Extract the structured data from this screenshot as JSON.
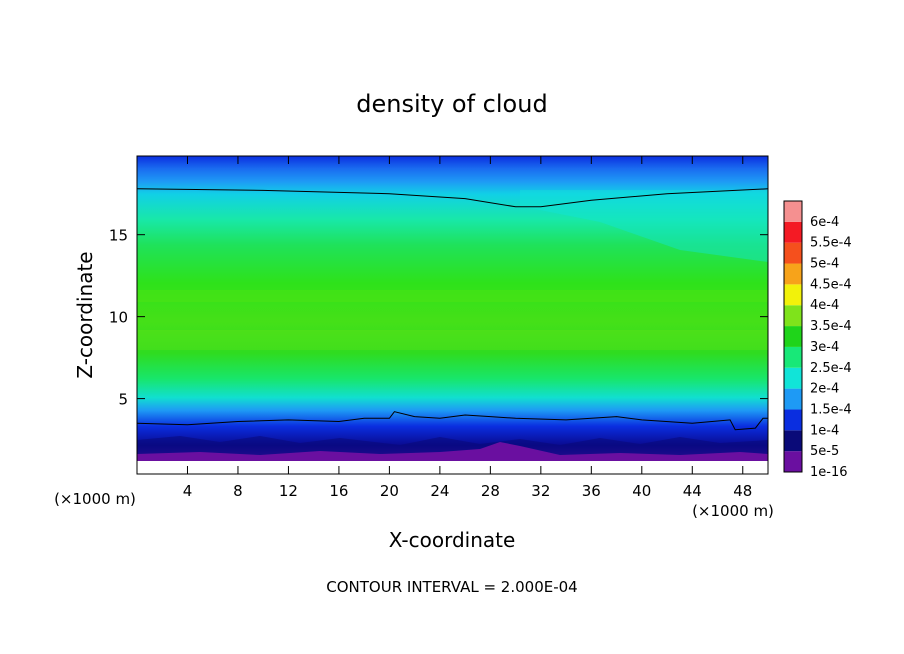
{
  "chart_data": {
    "type": "heatmap",
    "title": "density of cloud",
    "xlabel": "X-coordinate",
    "ylabel": "Z-coordinate",
    "x_unit": "(×1000 m)",
    "z_unit": "(×1000 m)",
    "xlim": [
      0,
      50
    ],
    "ylim": [
      0.4,
      19.8
    ],
    "x_ticks": [
      "4",
      "8",
      "12",
      "16",
      "20",
      "24",
      "28",
      "32",
      "36",
      "40",
      "44",
      "48"
    ],
    "y_ticks": [
      "5",
      "10",
      "15"
    ],
    "footer": "CONTOUR INTERVAL = 2.000E-04",
    "legend": {
      "placement": "right",
      "entries": [
        {
          "label": "1e-16",
          "color": "#6a0fa0"
        },
        {
          "label": "5e-5",
          "color": "#0a0a78"
        },
        {
          "label": "1e-4",
          "color": "#0a2ee0"
        },
        {
          "label": "1.5e-4",
          "color": "#1e9af5"
        },
        {
          "label": "2e-4",
          "color": "#11e4d8"
        },
        {
          "label": "2.5e-4",
          "color": "#18e878"
        },
        {
          "label": "3e-4",
          "color": "#1fd41a"
        },
        {
          "label": "3.5e-4",
          "color": "#7fe31b"
        },
        {
          "label": "4e-4",
          "color": "#f2f20a"
        },
        {
          "label": "4.5e-4",
          "color": "#f7a31a"
        },
        {
          "label": "5e-4",
          "color": "#f5501d"
        },
        {
          "label": "5.5e-4",
          "color": "#f41a24"
        },
        {
          "label": "6e-4",
          "color": "#f59090"
        }
      ]
    },
    "contours": [
      {
        "level": "2e-4",
        "points": [
          [
            0,
            17.8
          ],
          [
            10,
            17.7
          ],
          [
            20,
            17.5
          ],
          [
            26,
            17.2
          ],
          [
            30,
            16.7
          ],
          [
            32,
            16.7
          ],
          [
            36,
            17.1
          ],
          [
            42,
            17.5
          ],
          [
            50,
            17.8
          ]
        ]
      },
      {
        "level": "1.5e-4",
        "points": [
          [
            0,
            3.5
          ],
          [
            4,
            3.4
          ],
          [
            8,
            3.6
          ],
          [
            12,
            3.7
          ],
          [
            16,
            3.6
          ],
          [
            18,
            3.8
          ],
          [
            20,
            3.8
          ],
          [
            20.4,
            4.2
          ],
          [
            22,
            3.9
          ],
          [
            24,
            3.8
          ],
          [
            26,
            4.0
          ],
          [
            28,
            3.9
          ],
          [
            30,
            3.8
          ],
          [
            34,
            3.7
          ],
          [
            38,
            3.9
          ],
          [
            40,
            3.7
          ],
          [
            44,
            3.5
          ],
          [
            47,
            3.7
          ],
          [
            47.4,
            3.1
          ],
          [
            49,
            3.2
          ],
          [
            49.6,
            3.8
          ],
          [
            50,
            3.8
          ]
        ]
      }
    ]
  }
}
